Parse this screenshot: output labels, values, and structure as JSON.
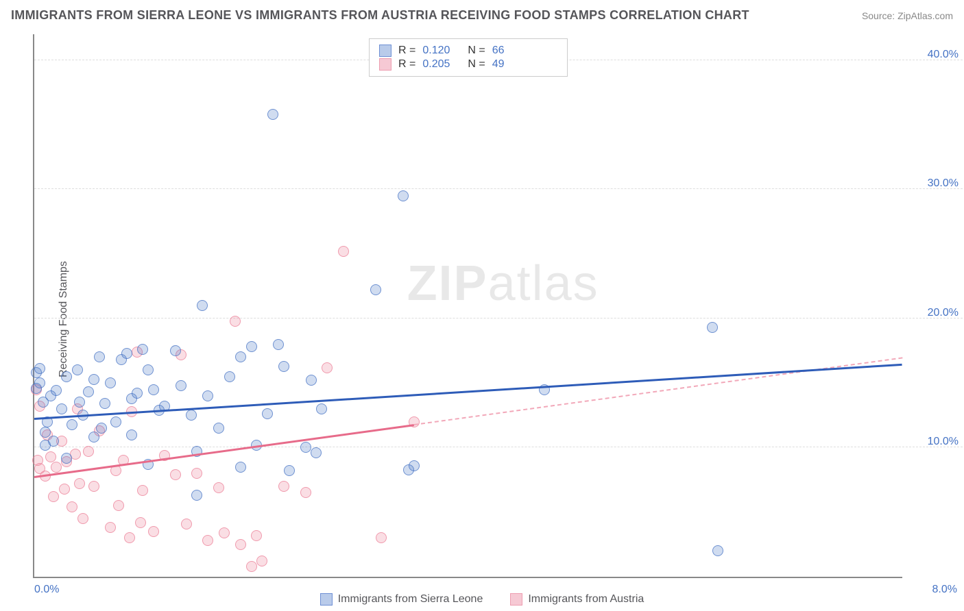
{
  "header": {
    "title": "IMMIGRANTS FROM SIERRA LEONE VS IMMIGRANTS FROM AUSTRIA RECEIVING FOOD STAMPS CORRELATION CHART",
    "source": "Source: ZipAtlas.com"
  },
  "y_axis": {
    "label": "Receiving Food Stamps"
  },
  "chart": {
    "type": "scatter",
    "xlim": [
      0,
      8
    ],
    "ylim": [
      0,
      42
    ],
    "x_ticks": [
      {
        "v": 0,
        "label": "0.0%",
        "pos": "left"
      },
      {
        "v": 8,
        "label": "8.0%",
        "pos": "right"
      }
    ],
    "y_ticks": [
      {
        "v": 10,
        "label": "10.0%"
      },
      {
        "v": 20,
        "label": "20.0%"
      },
      {
        "v": 30,
        "label": "30.0%"
      },
      {
        "v": 40,
        "label": "40.0%"
      }
    ],
    "grid_color": "#dddddd",
    "axis_color": "#888888",
    "background": "#ffffff",
    "watermark": "ZIPatlas",
    "series": [
      {
        "name": "Immigrants from Sierra Leone",
        "color_fill": "rgba(68,114,196,0.25)",
        "color_border": "rgba(68,114,196,0.7)",
        "swatch_fill": "#b9cbea",
        "swatch_border": "#6d8fd4",
        "trend_color": "#2e5cb8",
        "r": "0.120",
        "n": "66",
        "trend": {
          "x1": 0,
          "y1": 12.3,
          "x2": 8,
          "y2": 16.5,
          "dash_start": 8
        },
        "points": [
          [
            0.02,
            15.8
          ],
          [
            0.02,
            14.6
          ],
          [
            0.05,
            16.1
          ],
          [
            0.08,
            13.5
          ],
          [
            0.15,
            14.0
          ],
          [
            0.1,
            11.2
          ],
          [
            0.1,
            10.2
          ],
          [
            0.05,
            15.0
          ],
          [
            0.2,
            14.4
          ],
          [
            0.3,
            15.5
          ],
          [
            0.35,
            11.8
          ],
          [
            0.4,
            16.0
          ],
          [
            0.45,
            12.5
          ],
          [
            0.5,
            14.3
          ],
          [
            0.55,
            10.8
          ],
          [
            0.6,
            17.0
          ],
          [
            0.65,
            13.4
          ],
          [
            0.7,
            15.0
          ],
          [
            0.75,
            12.0
          ],
          [
            0.8,
            16.8
          ],
          [
            0.85,
            17.3
          ],
          [
            0.9,
            13.8
          ],
          [
            0.95,
            14.2
          ],
          [
            1.0,
            17.6
          ],
          [
            1.05,
            8.7
          ],
          [
            1.1,
            14.5
          ],
          [
            1.15,
            12.9
          ],
          [
            1.2,
            13.2
          ],
          [
            1.3,
            17.5
          ],
          [
            1.45,
            12.5
          ],
          [
            1.5,
            9.7
          ],
          [
            1.5,
            6.3
          ],
          [
            1.55,
            21.0
          ],
          [
            1.6,
            14.0
          ],
          [
            1.7,
            11.5
          ],
          [
            1.9,
            17.0
          ],
          [
            1.9,
            8.5
          ],
          [
            2.0,
            17.8
          ],
          [
            2.05,
            10.2
          ],
          [
            2.15,
            12.6
          ],
          [
            2.2,
            35.8
          ],
          [
            2.25,
            18.0
          ],
          [
            2.3,
            16.3
          ],
          [
            2.35,
            8.2
          ],
          [
            2.5,
            10.0
          ],
          [
            2.55,
            15.2
          ],
          [
            2.6,
            9.6
          ],
          [
            2.65,
            13.0
          ],
          [
            3.15,
            22.2
          ],
          [
            3.4,
            29.5
          ],
          [
            3.45,
            8.3
          ],
          [
            3.5,
            8.6
          ],
          [
            4.7,
            14.5
          ],
          [
            6.25,
            19.3
          ],
          [
            6.3,
            2.0
          ],
          [
            0.3,
            9.2
          ],
          [
            0.12,
            12.0
          ],
          [
            0.55,
            15.3
          ],
          [
            0.9,
            11.0
          ],
          [
            1.35,
            14.8
          ],
          [
            1.8,
            15.5
          ],
          [
            0.18,
            10.5
          ],
          [
            0.25,
            13.0
          ],
          [
            0.62,
            11.5
          ],
          [
            1.05,
            16.0
          ],
          [
            0.42,
            13.5
          ]
        ]
      },
      {
        "name": "Immigrants from Austria",
        "color_fill": "rgba(237,125,149,0.25)",
        "color_border": "rgba(237,125,149,0.7)",
        "swatch_fill": "#f6c9d4",
        "swatch_border": "#ed9db0",
        "trend_color": "#e76b8a",
        "r": "0.205",
        "n": "49",
        "trend": {
          "x1": 0,
          "y1": 7.8,
          "x2": 8,
          "y2": 17.0,
          "dash_start": 3.5
        },
        "points": [
          [
            0.02,
            14.5
          ],
          [
            0.03,
            9.0
          ],
          [
            0.05,
            8.4
          ],
          [
            0.05,
            13.2
          ],
          [
            0.1,
            7.8
          ],
          [
            0.12,
            11.0
          ],
          [
            0.15,
            9.3
          ],
          [
            0.18,
            6.2
          ],
          [
            0.2,
            8.5
          ],
          [
            0.25,
            10.5
          ],
          [
            0.28,
            6.8
          ],
          [
            0.3,
            8.9
          ],
          [
            0.35,
            5.4
          ],
          [
            0.38,
            9.5
          ],
          [
            0.4,
            13.0
          ],
          [
            0.42,
            7.2
          ],
          [
            0.45,
            4.5
          ],
          [
            0.5,
            9.7
          ],
          [
            0.55,
            7.0
          ],
          [
            0.6,
            11.3
          ],
          [
            0.7,
            3.8
          ],
          [
            0.75,
            8.2
          ],
          [
            0.78,
            5.5
          ],
          [
            0.82,
            9.0
          ],
          [
            0.88,
            3.0
          ],
          [
            0.9,
            12.8
          ],
          [
            0.95,
            17.4
          ],
          [
            0.98,
            4.2
          ],
          [
            1.0,
            6.7
          ],
          [
            1.1,
            3.5
          ],
          [
            1.2,
            9.4
          ],
          [
            1.3,
            7.9
          ],
          [
            1.35,
            17.2
          ],
          [
            1.4,
            4.1
          ],
          [
            1.5,
            8.0
          ],
          [
            1.6,
            2.8
          ],
          [
            1.7,
            6.9
          ],
          [
            1.75,
            3.4
          ],
          [
            1.85,
            19.8
          ],
          [
            1.9,
            2.5
          ],
          [
            2.0,
            0.8
          ],
          [
            2.05,
            3.2
          ],
          [
            2.1,
            1.2
          ],
          [
            2.3,
            7.0
          ],
          [
            2.5,
            6.5
          ],
          [
            2.7,
            16.2
          ],
          [
            2.85,
            25.2
          ],
          [
            3.2,
            3.0
          ],
          [
            3.5,
            12.0
          ]
        ]
      }
    ]
  },
  "stats_labels": {
    "r": "R  =",
    "n": "N  ="
  }
}
